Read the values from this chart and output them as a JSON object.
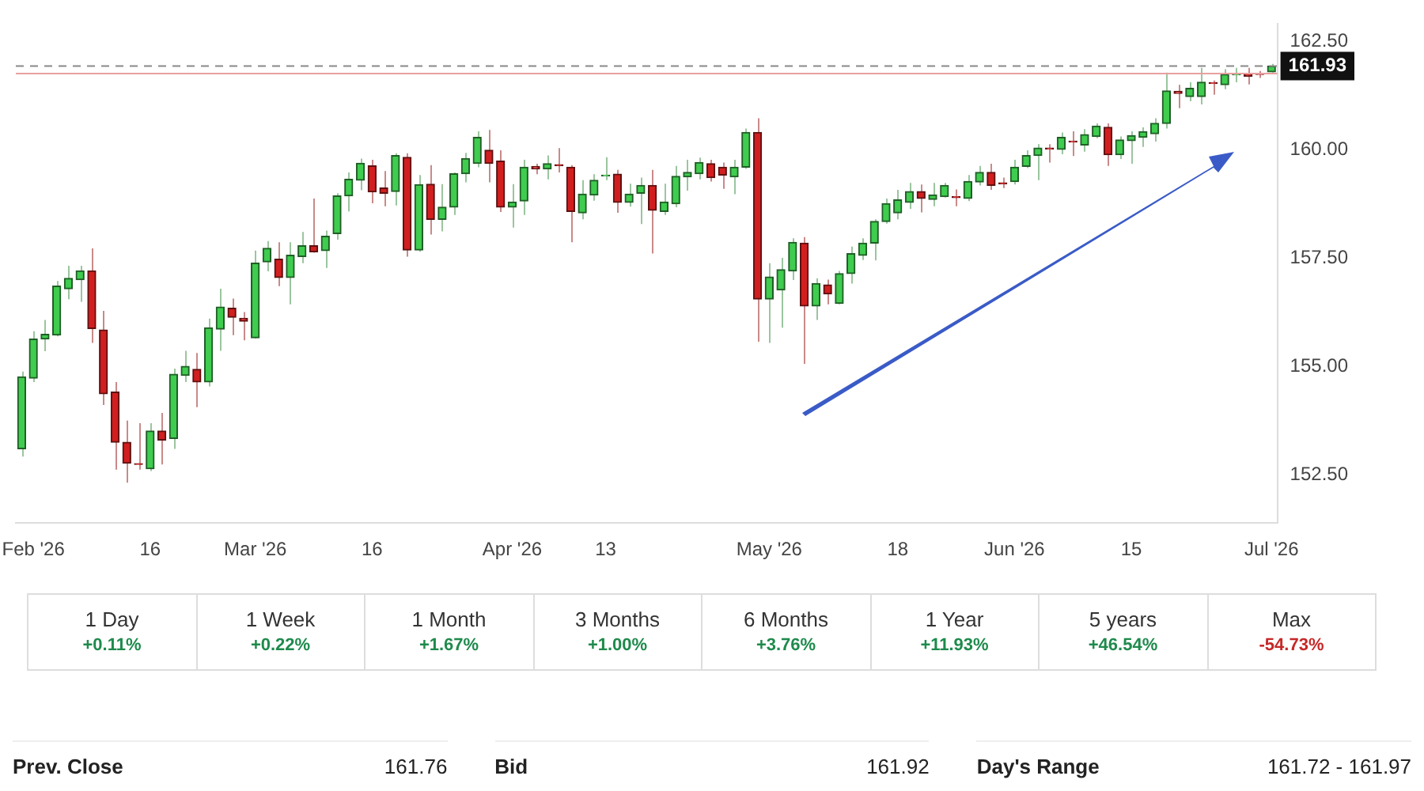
{
  "chart_data": {
    "type": "candlestick",
    "categories": [
      null,
      "Feb '26",
      null,
      null,
      null,
      null,
      null,
      null,
      null,
      null,
      null,
      "16",
      null,
      null,
      null,
      null,
      null,
      null,
      null,
      null,
      "Mar '26",
      null,
      null,
      null,
      null,
      null,
      null,
      null,
      null,
      null,
      "16",
      null,
      null,
      null,
      null,
      null,
      null,
      null,
      null,
      null,
      null,
      null,
      "Apr '26",
      null,
      null,
      null,
      null,
      null,
      null,
      null,
      "13",
      null,
      null,
      null,
      null,
      null,
      null,
      null,
      null,
      null,
      null,
      null,
      null,
      null,
      "May '26",
      null,
      null,
      null,
      null,
      null,
      null,
      null,
      null,
      null,
      null,
      "18",
      null,
      null,
      null,
      null,
      null,
      null,
      null,
      null,
      null,
      "Jun '26",
      null,
      null,
      null,
      null,
      null,
      null,
      null,
      null,
      null,
      "15",
      null,
      null,
      null,
      null,
      null,
      null,
      null,
      null,
      null,
      null,
      null,
      "Jul '26"
    ],
    "ohlc": [
      [
        153.11,
        154.89,
        152.93,
        154.77
      ],
      [
        154.74,
        155.82,
        154.65,
        155.64
      ],
      [
        155.64,
        156.08,
        155.36,
        155.75
      ],
      [
        155.73,
        156.98,
        155.7,
        156.86
      ],
      [
        156.8,
        157.33,
        156.56,
        157.04
      ],
      [
        157.01,
        157.33,
        156.5,
        157.21
      ],
      [
        157.21,
        157.73,
        155.55,
        155.88
      ],
      [
        155.85,
        156.29,
        154.12,
        154.38
      ],
      [
        154.42,
        154.65,
        152.63,
        153.26
      ],
      [
        153.26,
        153.76,
        152.33,
        152.78
      ],
      [
        152.77,
        153.7,
        152.63,
        152.75
      ],
      [
        152.65,
        153.7,
        152.6,
        153.52
      ],
      [
        153.52,
        153.94,
        152.75,
        153.31
      ],
      [
        153.35,
        154.96,
        153.11,
        154.83
      ],
      [
        154.8,
        155.37,
        154.65,
        155.01
      ],
      [
        154.94,
        155.32,
        154.07,
        154.65
      ],
      [
        154.65,
        156.11,
        154.55,
        155.9
      ],
      [
        155.87,
        156.8,
        155.37,
        156.38
      ],
      [
        156.35,
        156.57,
        155.73,
        156.14
      ],
      [
        156.12,
        156.26,
        155.61,
        156.05
      ],
      [
        155.67,
        157.68,
        155.65,
        157.39
      ],
      [
        157.42,
        157.9,
        157.2,
        157.73
      ],
      [
        157.48,
        157.87,
        156.86,
        157.06
      ],
      [
        157.06,
        157.87,
        156.44,
        157.57
      ],
      [
        157.54,
        158.11,
        157.39,
        157.79
      ],
      [
        157.79,
        158.88,
        157.63,
        157.65
      ],
      [
        157.68,
        158.14,
        157.28,
        158.01
      ],
      [
        158.07,
        159.0,
        157.93,
        158.94
      ],
      [
        158.94,
        159.48,
        158.58,
        159.32
      ],
      [
        159.3,
        159.8,
        159.07,
        159.69
      ],
      [
        159.63,
        159.77,
        158.77,
        159.03
      ],
      [
        159.12,
        159.51,
        158.7,
        159.0
      ],
      [
        159.04,
        159.92,
        158.72,
        159.87
      ],
      [
        159.83,
        159.92,
        157.54,
        157.69
      ],
      [
        157.69,
        159.42,
        157.65,
        159.2
      ],
      [
        159.21,
        159.65,
        158.05,
        158.4
      ],
      [
        158.4,
        159.21,
        158.12,
        158.68
      ],
      [
        158.68,
        159.48,
        158.5,
        159.45
      ],
      [
        159.45,
        159.93,
        159.25,
        159.8
      ],
      [
        159.69,
        160.43,
        159.6,
        160.29
      ],
      [
        159.99,
        160.46,
        159.25,
        159.69
      ],
      [
        159.74,
        159.99,
        158.57,
        158.68
      ],
      [
        158.68,
        159.21,
        158.21,
        158.8
      ],
      [
        158.82,
        159.77,
        158.5,
        159.6
      ],
      [
        159.62,
        159.68,
        159.44,
        159.56
      ],
      [
        159.56,
        159.87,
        159.32,
        159.68
      ],
      [
        159.66,
        160.04,
        159.48,
        159.64
      ],
      [
        159.6,
        159.65,
        157.87,
        158.58
      ],
      [
        158.55,
        159.3,
        158.4,
        158.98
      ],
      [
        158.96,
        159.44,
        158.83,
        159.3
      ],
      [
        159.4,
        159.83,
        159.3,
        159.42
      ],
      [
        159.44,
        159.54,
        158.55,
        158.79
      ],
      [
        158.79,
        159.22,
        158.69,
        158.98
      ],
      [
        159.0,
        159.36,
        158.29,
        159.18
      ],
      [
        159.18,
        159.54,
        157.61,
        158.61
      ],
      [
        158.58,
        159.22,
        158.5,
        158.8
      ],
      [
        158.76,
        159.63,
        158.68,
        159.39
      ],
      [
        159.38,
        159.77,
        159.06,
        159.48
      ],
      [
        159.45,
        159.82,
        159.32,
        159.71
      ],
      [
        159.68,
        159.77,
        159.27,
        159.36
      ],
      [
        159.6,
        159.71,
        159.1,
        159.42
      ],
      [
        159.38,
        159.77,
        158.98,
        159.6
      ],
      [
        159.6,
        160.49,
        159.56,
        160.4
      ],
      [
        160.4,
        160.73,
        155.58,
        156.56
      ],
      [
        156.56,
        157.39,
        155.55,
        157.07
      ],
      [
        156.77,
        157.51,
        155.9,
        157.24
      ],
      [
        157.21,
        157.96,
        157.0,
        157.87
      ],
      [
        157.85,
        157.99,
        155.07,
        156.4
      ],
      [
        156.4,
        157.04,
        156.08,
        156.92
      ],
      [
        156.89,
        157.01,
        156.44,
        156.68
      ],
      [
        156.46,
        157.21,
        156.44,
        157.15
      ],
      [
        157.15,
        157.77,
        156.92,
        157.61
      ],
      [
        157.57,
        157.96,
        157.46,
        157.85
      ],
      [
        157.85,
        158.4,
        157.45,
        158.35
      ],
      [
        158.35,
        158.88,
        158.3,
        158.76
      ],
      [
        158.55,
        159.08,
        158.4,
        158.85
      ],
      [
        158.79,
        159.24,
        158.64,
        159.04
      ],
      [
        159.04,
        159.2,
        158.56,
        158.88
      ],
      [
        158.86,
        159.24,
        158.7,
        158.96
      ],
      [
        158.92,
        159.24,
        158.9,
        159.18
      ],
      [
        158.92,
        159.09,
        158.7,
        158.9
      ],
      [
        158.88,
        159.42,
        158.82,
        159.27
      ],
      [
        159.26,
        159.63,
        159.18,
        159.48
      ],
      [
        159.48,
        159.68,
        159.08,
        159.18
      ],
      [
        159.24,
        159.36,
        159.12,
        159.22
      ],
      [
        159.27,
        159.77,
        159.2,
        159.6
      ],
      [
        159.62,
        159.99,
        159.58,
        159.87
      ],
      [
        159.87,
        160.13,
        159.3,
        160.04
      ],
      [
        160.04,
        160.13,
        159.71,
        160.02
      ],
      [
        160.01,
        160.4,
        159.9,
        160.29
      ],
      [
        160.2,
        160.43,
        159.86,
        160.18
      ],
      [
        160.11,
        160.48,
        159.96,
        160.35
      ],
      [
        160.31,
        160.61,
        160.27,
        160.55
      ],
      [
        160.52,
        160.61,
        159.63,
        159.89
      ],
      [
        159.89,
        160.31,
        159.79,
        160.23
      ],
      [
        160.21,
        160.43,
        159.68,
        160.33
      ],
      [
        160.29,
        160.52,
        160.07,
        160.42
      ],
      [
        160.37,
        160.73,
        160.19,
        160.61
      ],
      [
        160.61,
        161.78,
        160.49,
        161.36
      ],
      [
        161.35,
        161.5,
        160.96,
        161.3
      ],
      [
        161.23,
        161.56,
        161.12,
        161.42
      ],
      [
        161.23,
        161.89,
        161.05,
        161.56
      ],
      [
        161.55,
        161.6,
        161.27,
        161.53
      ],
      [
        161.5,
        161.86,
        161.4,
        161.74
      ],
      [
        161.73,
        161.89,
        161.56,
        161.75
      ],
      [
        161.76,
        161.89,
        161.51,
        161.7
      ],
      [
        161.75,
        161.82,
        161.66,
        161.74
      ],
      [
        161.8,
        161.98,
        161.78,
        161.93
      ]
    ],
    "ylim": [
      151.4,
      162.9
    ],
    "yticks": [
      {
        "value": 152.5,
        "label": "152.50"
      },
      {
        "value": 155,
        "label": "155.00"
      },
      {
        "value": 157.5,
        "label": "157.50"
      },
      {
        "value": 160,
        "label": "160.00"
      },
      {
        "value": 162.5,
        "label": "162.50"
      }
    ],
    "ref_lines": [
      {
        "axis": "y",
        "value": 161.93,
        "label": "161.93",
        "color": "#888888",
        "line_style": "dashed"
      },
      {
        "axis": "y",
        "value": 161.76,
        "color": "#e8a0a0",
        "line_style": "solid"
      }
    ],
    "grid": false,
    "legend": false,
    "annotations": [
      "1 Day",
      "+0.11%",
      "1 Week",
      "+0.22%",
      "1 Month",
      "+1.67%",
      "3 Months",
      "+1.00%",
      "6 Months",
      "+3.76%",
      "1 Year",
      "+11.93%",
      "5 years",
      "+46.54%",
      "Max",
      "-54.73%",
      "Prev. Close",
      "161.76",
      "Bid",
      "161.92",
      "Day's Range",
      "161.72 - 161.97"
    ]
  }
}
